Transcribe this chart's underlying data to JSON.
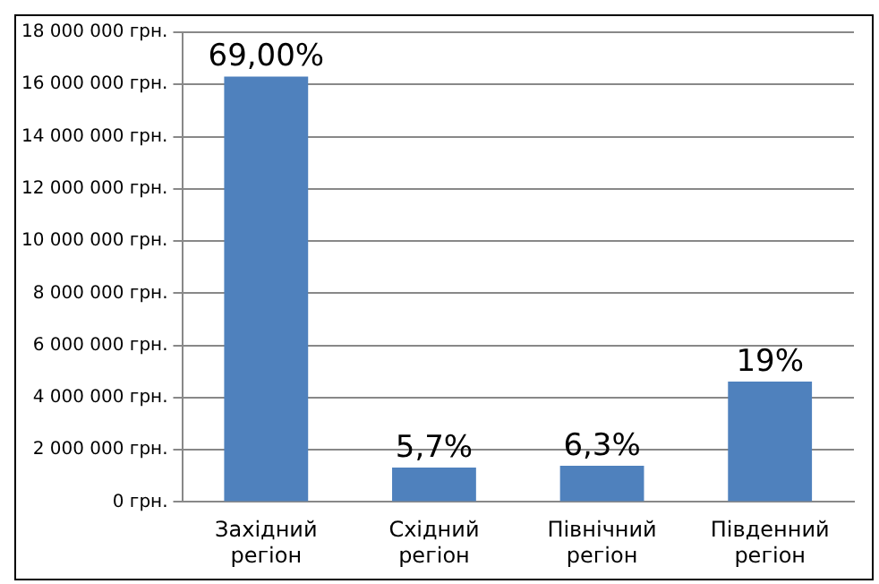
{
  "chart_data": {
    "type": "bar",
    "categories": [
      "Західний регіон",
      "Східний регіон",
      "Північний регіон",
      "Південний регіон"
    ],
    "values": [
      16300000,
      1320000,
      1390000,
      4610000
    ],
    "annotations": [
      {
        "text": "69,00%",
        "x": "Західний регіон",
        "y": 16300000
      },
      {
        "text": "5,7%",
        "x": "Східний регіон",
        "y": 1320000
      },
      {
        "text": "6,3%",
        "x": "Північний регіон",
        "y": 1390000
      },
      {
        "text": "19%",
        "x": "Південний регіон",
        "y": 4610000
      }
    ],
    "color": "#4f81bd",
    "ylim": [
      0,
      18000000
    ],
    "yticks": [
      {
        "value": 0,
        "label": "0 грн."
      },
      {
        "value": 2000000,
        "label": "2 000 000 грн."
      },
      {
        "value": 4000000,
        "label": "4 000 000 грн."
      },
      {
        "value": 6000000,
        "label": "6 000 000 грн."
      },
      {
        "value": 8000000,
        "label": "8 000 000 грн."
      },
      {
        "value": 10000000,
        "label": "10 000 000 грн."
      },
      {
        "value": 12000000,
        "label": "12 000 000 грн."
      },
      {
        "value": 14000000,
        "label": "14 000 000 грн."
      },
      {
        "value": 16000000,
        "label": "16 000 000 грн."
      },
      {
        "value": 18000000,
        "label": "18 000 000 грн."
      }
    ],
    "grid": "y",
    "legend": false
  }
}
